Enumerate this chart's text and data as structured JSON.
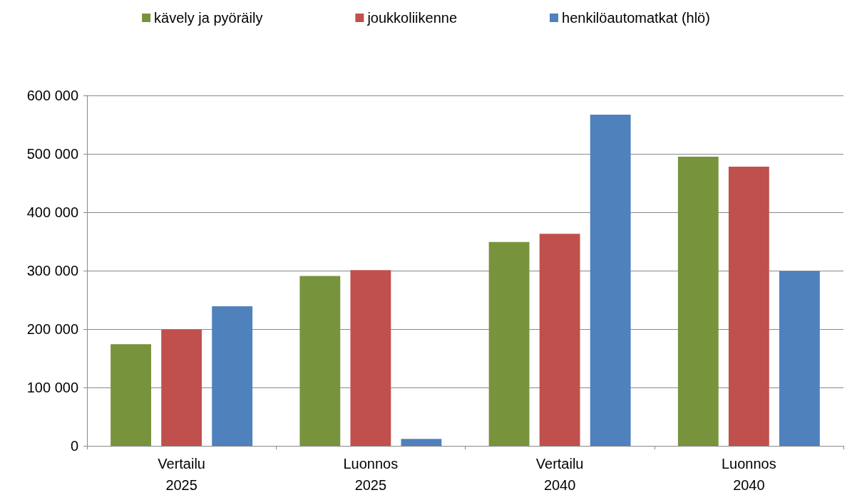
{
  "chart_data": {
    "type": "bar",
    "categories": [
      "Vertailu\n2025",
      "Luonnos\n2025",
      "Vertailu\n2040",
      "Luonnos\n2040"
    ],
    "series": [
      {
        "name": "kävely ja pyöräily",
        "color": "#77933c",
        "values": [
          174000,
          291000,
          349000,
          495000
        ]
      },
      {
        "name": "joukkoliikenne",
        "color": "#c0504d",
        "values": [
          199000,
          301000,
          363000,
          478000
        ]
      },
      {
        "name": "henkilöautomatkat (hlö)",
        "color": "#4f81bd",
        "values": [
          239000,
          12000,
          567000,
          299000
        ]
      }
    ],
    "ylim": [
      0,
      600000
    ],
    "yticks": [
      {
        "value": 0,
        "label": "0"
      },
      {
        "value": 100000,
        "label": "100 000"
      },
      {
        "value": 200000,
        "label": "200 000"
      },
      {
        "value": 300000,
        "label": "300 000"
      },
      {
        "value": 400000,
        "label": "400 000"
      },
      {
        "value": 500000,
        "label": "500 000"
      },
      {
        "value": 600000,
        "label": "600 000"
      }
    ],
    "grid": "y",
    "legend": "top"
  }
}
